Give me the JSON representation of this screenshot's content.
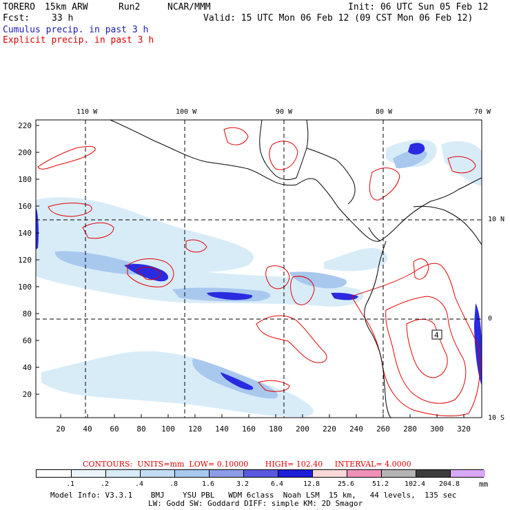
{
  "header": {
    "model": "TORERO",
    "res": "15km ARW",
    "run": "Run2",
    "org": "NCAR/MMM",
    "init": "Init: 06 UTC Sun 05 Feb 12",
    "fcst_label": "Fcst:",
    "fcst_value": "33 h",
    "valid": "Valid: 15 UTC Mon 06 Feb 12 (09 CST Mon 06 Feb 12)",
    "legend_cumulus": "Cumulus precip. in past 3 h",
    "legend_explicit": "Explicit precip. in past 3 h"
  },
  "colors": {
    "cumulus": "#1a1ab0",
    "explicit": "#e00000",
    "coast": "#000000"
  },
  "map": {
    "lon_labels": [
      "110 W",
      "100 W",
      "90 W",
      "80 W",
      "70 W"
    ],
    "lat_labels": [
      "10 N",
      "0",
      "10 S"
    ],
    "y_ticks": [
      "220",
      "200",
      "180",
      "160",
      "140",
      "120",
      "100",
      "80",
      "60",
      "40",
      "20"
    ],
    "x_ticks": [
      "20",
      "40",
      "60",
      "80",
      "100",
      "120",
      "140",
      "160",
      "180",
      "200",
      "220",
      "240",
      "260",
      "280",
      "300",
      "320"
    ],
    "station_label": "4"
  },
  "contours": {
    "label": "CONTOURS:",
    "units": "UNITS=mm",
    "low": "LOW= 0.10000",
    "high": "HIGH= 102.40",
    "interval": "INTERVAL= 4.0000"
  },
  "colorbar": {
    "labels": [
      ".1",
      ".2",
      ".4",
      ".8",
      "1.6",
      "3.2",
      "6.4",
      "12.8",
      "25.6",
      "51.2",
      "102.4",
      "204.8"
    ],
    "unit": "mm",
    "colors": [
      "#ffffff",
      "#ecf4fc",
      "#d8ecf8",
      "#c4dcf4",
      "#a8c8ee",
      "#8c9ce6",
      "#5a5ae0",
      "#1e1ed8",
      "#f8d8d8",
      "#f090b8",
      "#b4b4b4",
      "#3c3c3c",
      "#d8a8f8"
    ]
  },
  "info": {
    "line1": "Model Info: V3.3.1    BMJ    YSU PBL   WDM 6class  Noah LSM  15 km,   44 levels,  135 sec",
    "line2": "LW: Godd SW: Goddard DIFF: simple KM: 2D Smagor"
  }
}
